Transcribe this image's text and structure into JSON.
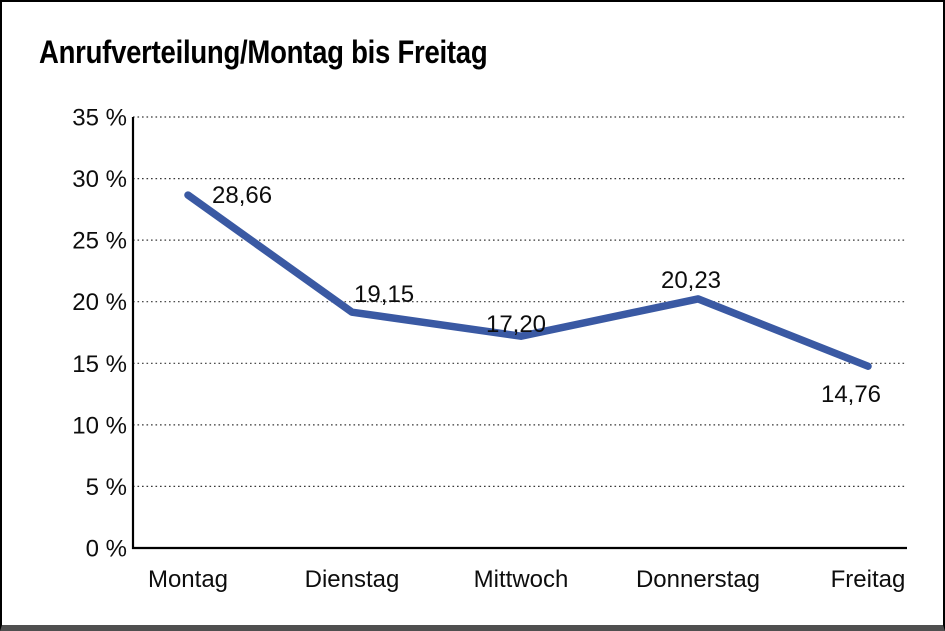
{
  "chart_data": {
    "type": "line",
    "title": "Anrufverteilung/Montag bis Freitag",
    "categories": [
      "Montag",
      "Dienstag",
      "Mittwoch",
      "Donnerstag",
      "Freitag"
    ],
    "series": [
      {
        "name": "Anrufverteilung",
        "values": [
          28.66,
          19.15,
          17.2,
          20.23,
          14.76
        ]
      }
    ],
    "point_labels": [
      "28,66",
      "19,15",
      "17,20",
      "20,23",
      "14,76"
    ],
    "y_ticks": [
      "0 %",
      "5 %",
      "10 %",
      "15 %",
      "20 %",
      "25 %",
      "30 %",
      "35 %"
    ],
    "ylim": [
      0,
      35
    ],
    "y_step": 5,
    "xlabel": "",
    "ylabel": "",
    "grid": "horizontal-dotted",
    "legend": "none",
    "line_color": "#3A59A3",
    "axis_color": "#000000",
    "grid_color": "#383838",
    "text_color": "#0d0d0d",
    "frame_border_color": "#000000",
    "frame_shadow_color": "#4f4f4f",
    "background_color": "#ffffff"
  }
}
